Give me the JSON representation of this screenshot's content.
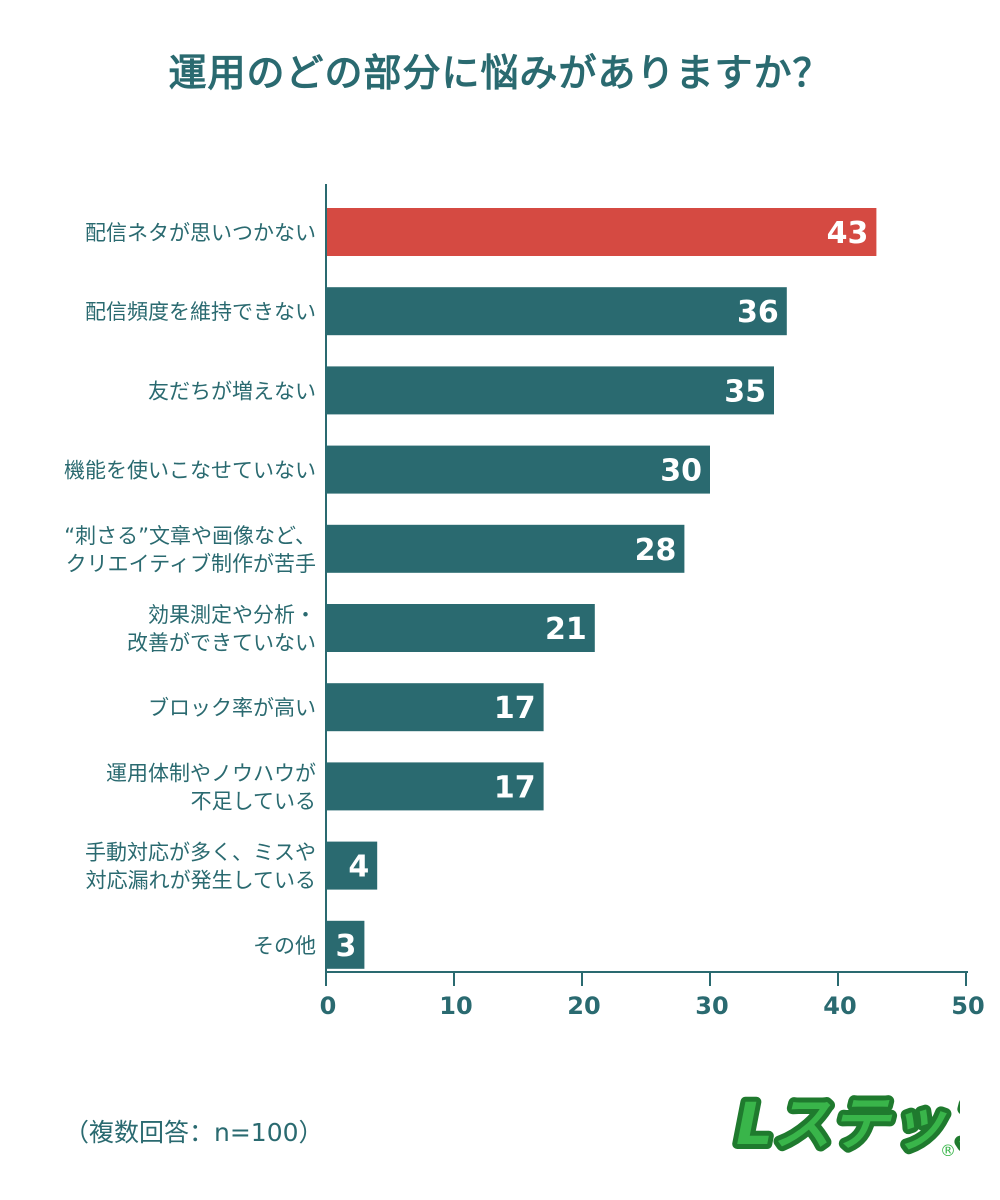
{
  "title": "運用のどの部分に悩みがありますか？",
  "footnote": "（複数回答：n=100）",
  "logo": "Lステップ",
  "colors": {
    "highlight": "#d54a42",
    "bar": "#2a6a70",
    "axis": "#2a6a70"
  },
  "chart_data": {
    "type": "bar",
    "orientation": "horizontal",
    "categories": [
      [
        "配信ネタが思いつかない"
      ],
      [
        "配信頻度を維持できない"
      ],
      [
        "友だちが増えない"
      ],
      [
        "機能を使いこなせていない"
      ],
      [
        "“刺さる”文章や画像など、",
        "クリエイティブ制作が苦手"
      ],
      [
        "効果測定や分析・",
        "改善ができていない"
      ],
      [
        "ブロック率が高い"
      ],
      [
        "運用体制やノウハウが",
        "不足している"
      ],
      [
        "手動対応が多く、ミスや",
        "対応漏れが発生している"
      ],
      [
        "その他"
      ]
    ],
    "values": [
      43,
      36,
      35,
      30,
      28,
      21,
      17,
      17,
      4,
      3
    ],
    "value_labels": [
      "43",
      "36",
      "35",
      "30",
      "28",
      "21",
      "17",
      "17",
      "4",
      "3"
    ],
    "highlight_index": 0,
    "xlim": [
      0,
      50
    ],
    "xticks": [
      "0",
      "10",
      "20",
      "30",
      "40",
      "50"
    ],
    "grid": false,
    "legend": "none"
  }
}
